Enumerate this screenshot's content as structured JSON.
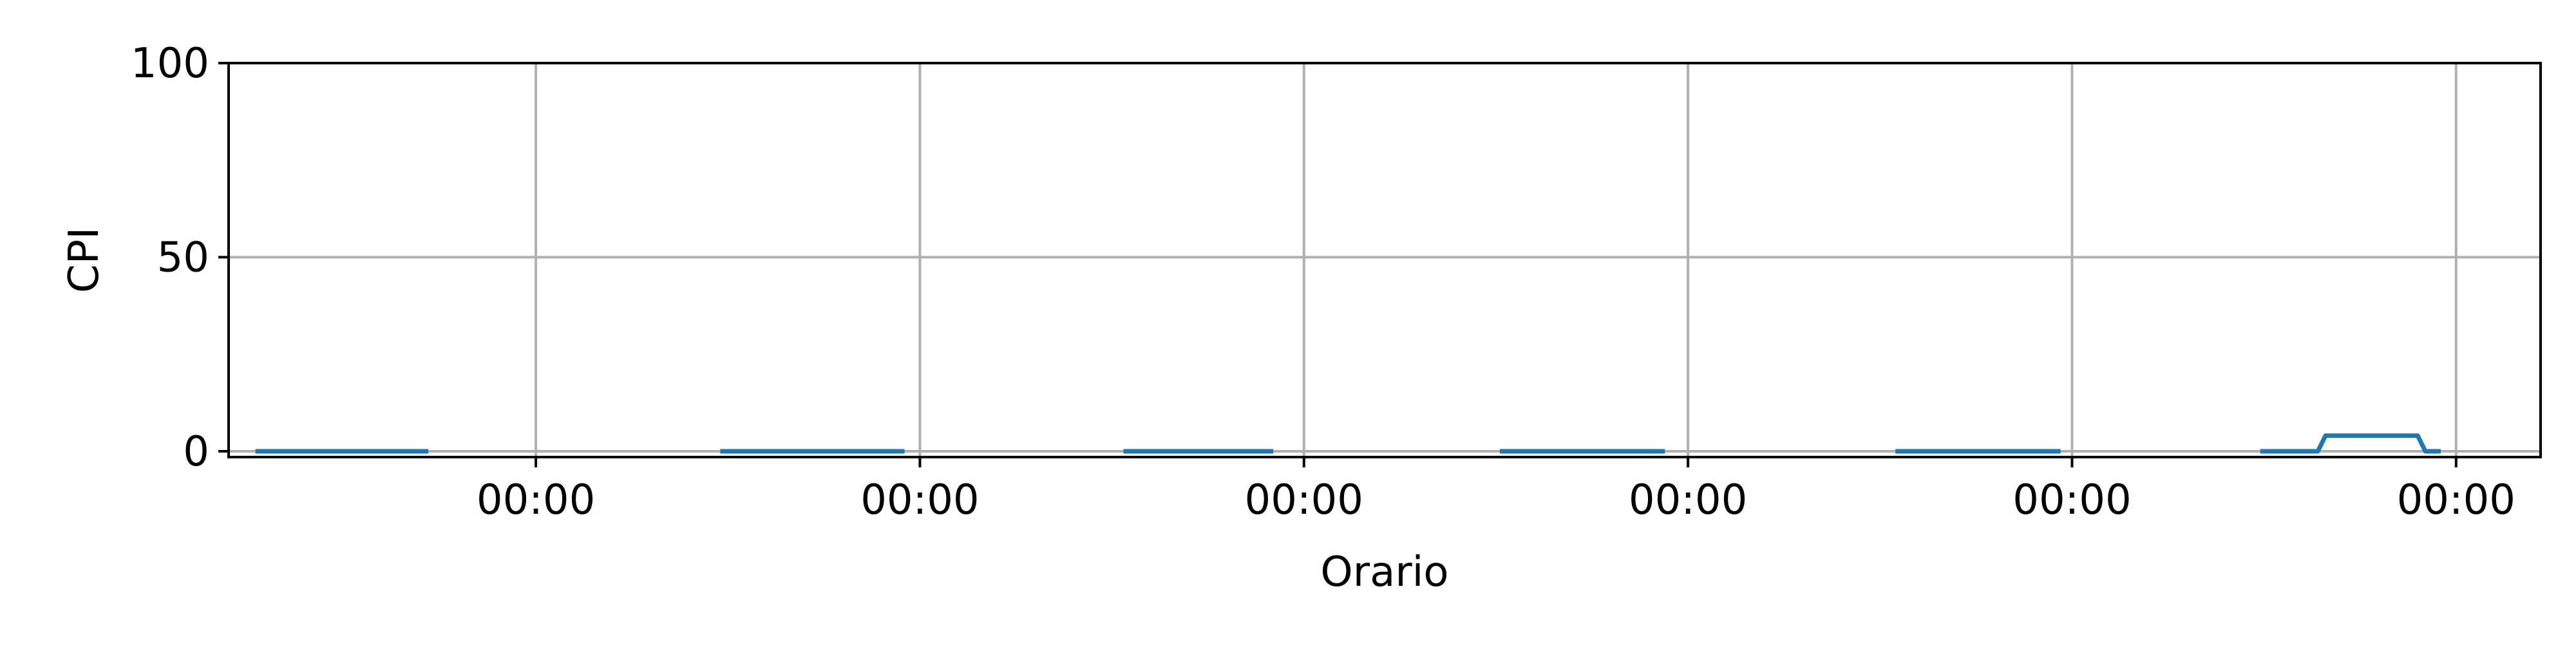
{
  "chart_data": {
    "type": "line",
    "title": "",
    "xlabel": "Orario",
    "ylabel": "CPI",
    "ylim": [
      0,
      100
    ],
    "yticks": [
      0,
      50,
      100
    ],
    "xticks": [
      {
        "pos": 1,
        "label": "00:00"
      },
      {
        "pos": 2,
        "label": "00:00"
      },
      {
        "pos": 3,
        "label": "00:00"
      },
      {
        "pos": 4,
        "label": "00:00"
      },
      {
        "pos": 5,
        "label": "00:00"
      },
      {
        "pos": 6,
        "label": "00:00"
      }
    ],
    "xlim": [
      0.2,
      6.22
    ],
    "grid": true,
    "series": [
      {
        "color": "#1f77b4",
        "segments": [
          [
            [
              0.27,
              0
            ],
            [
              0.72,
              0
            ]
          ],
          [
            [
              1.48,
              0
            ],
            [
              1.96,
              0
            ]
          ],
          [
            [
              2.53,
              0
            ],
            [
              2.92,
              0
            ]
          ],
          [
            [
              3.51,
              0
            ],
            [
              3.94,
              0
            ]
          ],
          [
            [
              4.54,
              0
            ],
            [
              4.97,
              0
            ]
          ],
          [
            [
              5.49,
              0
            ],
            [
              5.64,
              0
            ],
            [
              5.66,
              4
            ],
            [
              5.9,
              4
            ],
            [
              5.92,
              0
            ],
            [
              5.96,
              0
            ]
          ]
        ]
      }
    ]
  }
}
